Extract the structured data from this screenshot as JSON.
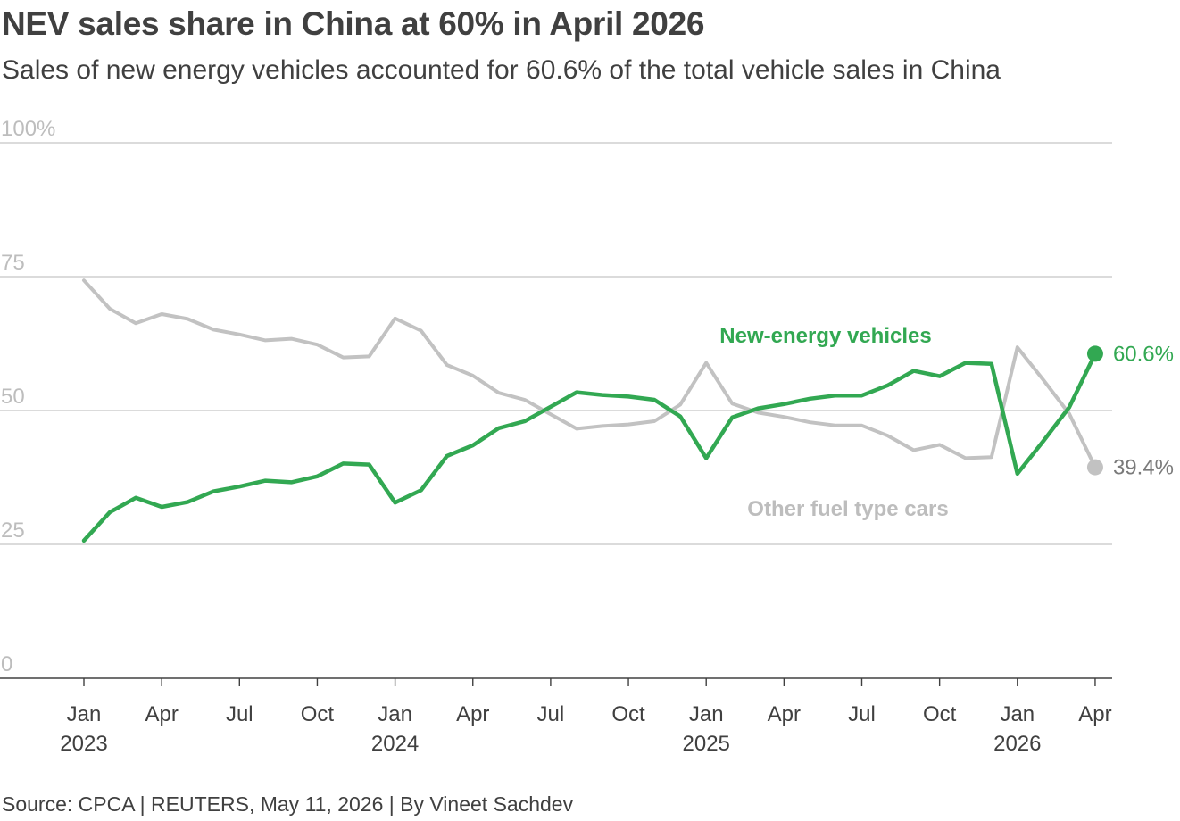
{
  "title": "NEV sales share in China at 60% in April 2026",
  "subtitle": "Sales of new energy vehicles accounted for 60.6% of the total vehicle sales in China",
  "source": "Source: CPCA | REUTERS, May 11, 2026 | By Vineet Sachdev",
  "colors": {
    "nev": "#32a852",
    "other": "#c2c2c2",
    "grid": "#cfcfcf",
    "axis": "#404040"
  },
  "chart_data": {
    "type": "line",
    "x": [
      "2023-01",
      "2023-02",
      "2023-03",
      "2023-04",
      "2023-05",
      "2023-06",
      "2023-07",
      "2023-08",
      "2023-09",
      "2023-10",
      "2023-11",
      "2023-12",
      "2024-01",
      "2024-02",
      "2024-03",
      "2024-04",
      "2024-05",
      "2024-06",
      "2024-07",
      "2024-08",
      "2024-09",
      "2024-10",
      "2024-11",
      "2024-12",
      "2025-01",
      "2025-02",
      "2025-03",
      "2025-04",
      "2025-05",
      "2025-06",
      "2025-07",
      "2025-08",
      "2025-09",
      "2025-10",
      "2025-11",
      "2025-12",
      "2026-01",
      "2026-02",
      "2026-03",
      "2026-04"
    ],
    "series": [
      {
        "name": "New-energy vehicles",
        "color": "#32a852",
        "values": [
          25.7,
          31.0,
          33.7,
          32.0,
          32.9,
          34.9,
          35.8,
          36.9,
          36.6,
          37.7,
          40.1,
          39.9,
          32.8,
          35.1,
          41.5,
          43.5,
          46.7,
          48.0,
          50.7,
          53.4,
          52.9,
          52.6,
          52.0,
          48.9,
          41.1,
          48.7,
          50.4,
          51.2,
          52.2,
          52.8,
          52.8,
          54.7,
          57.4,
          56.4,
          58.9,
          58.7,
          38.2,
          44.3,
          50.6,
          60.6
        ]
      },
      {
        "name": "Other fuel type cars",
        "color": "#c2c2c2",
        "values": [
          74.3,
          69.0,
          66.3,
          68.0,
          67.1,
          65.1,
          64.2,
          63.1,
          63.4,
          62.3,
          59.9,
          60.1,
          67.2,
          64.9,
          58.5,
          56.5,
          53.3,
          52.0,
          49.3,
          46.6,
          47.1,
          47.4,
          48.0,
          51.1,
          58.9,
          51.3,
          49.6,
          48.8,
          47.8,
          47.2,
          47.2,
          45.3,
          42.6,
          43.6,
          41.1,
          41.3,
          61.8,
          55.7,
          49.4,
          39.4
        ]
      }
    ],
    "yticks": [
      "0",
      "25",
      "50",
      "75",
      "100%"
    ],
    "ytick_values": [
      0,
      25,
      50,
      75,
      100
    ],
    "ylim": [
      0,
      100
    ],
    "xticks": [
      {
        "label": "Jan",
        "sub": "2023",
        "x": "2023-01"
      },
      {
        "label": "Apr",
        "sub": "",
        "x": "2023-04"
      },
      {
        "label": "Jul",
        "sub": "",
        "x": "2023-07"
      },
      {
        "label": "Oct",
        "sub": "",
        "x": "2023-10"
      },
      {
        "label": "Jan",
        "sub": "2024",
        "x": "2024-01"
      },
      {
        "label": "Apr",
        "sub": "",
        "x": "2024-04"
      },
      {
        "label": "Jul",
        "sub": "",
        "x": "2024-07"
      },
      {
        "label": "Oct",
        "sub": "",
        "x": "2024-10"
      },
      {
        "label": "Jan",
        "sub": "2025",
        "x": "2025-01"
      },
      {
        "label": "Apr",
        "sub": "",
        "x": "2025-04"
      },
      {
        "label": "Jul",
        "sub": "",
        "x": "2025-07"
      },
      {
        "label": "Oct",
        "sub": "",
        "x": "2025-10"
      },
      {
        "label": "Jan",
        "sub": "2026",
        "x": "2026-01"
      },
      {
        "label": "Apr",
        "sub": "",
        "x": "2026-04"
      }
    ],
    "end_labels": [
      "60.6%",
      "39.4%"
    ],
    "series_labels": [
      "New-energy vehicles",
      "Other fuel type cars"
    ],
    "grid": true
  }
}
